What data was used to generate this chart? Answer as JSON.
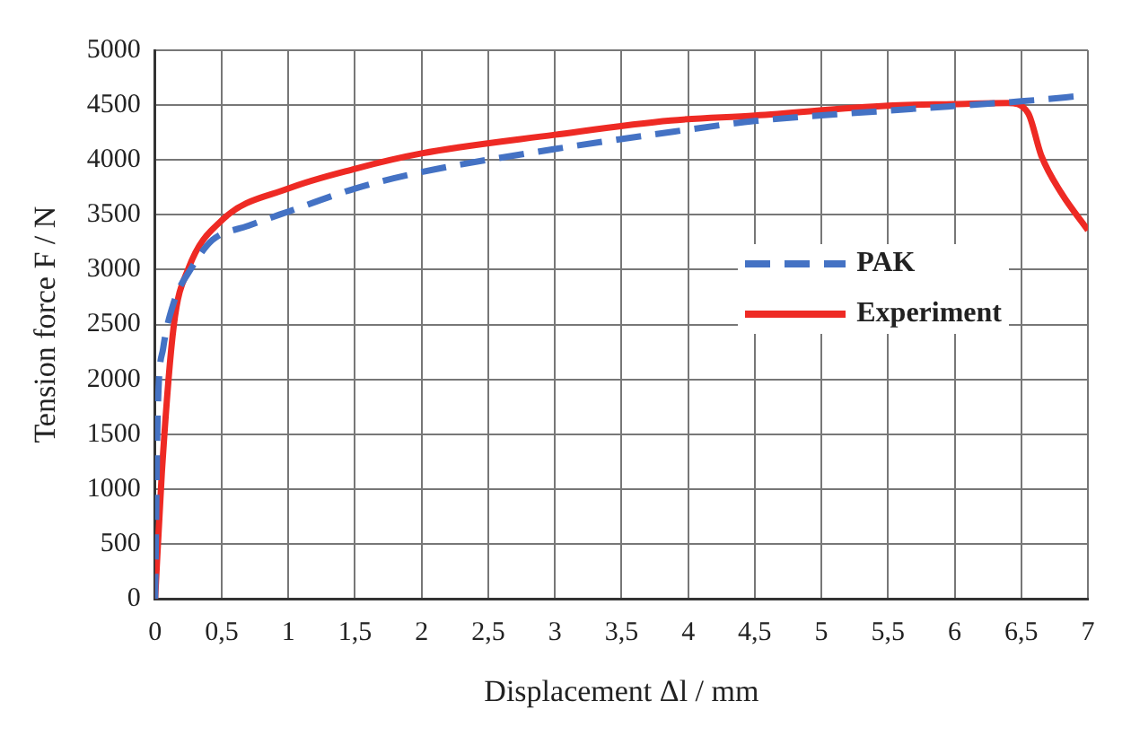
{
  "chart_data": {
    "type": "line",
    "xlabel": "Displacement Δl / mm",
    "ylabel": "Tension force F / N",
    "xlim": [
      0,
      7
    ],
    "xticks": [
      0,
      {
        "value": 0.5,
        "label": "0,5"
      },
      1,
      {
        "value": 1.5,
        "label": "1,5"
      },
      2,
      {
        "value": 2.5,
        "label": "2,5"
      },
      3,
      {
        "value": 3.5,
        "label": "3,5"
      },
      4,
      {
        "value": 4.5,
        "label": "4,5"
      },
      5,
      {
        "value": 5.5,
        "label": "5,5"
      },
      6,
      {
        "value": 6.5,
        "label": "6,5"
      },
      7
    ],
    "ylim": [
      0,
      5000
    ],
    "yticks": [
      0,
      500,
      1000,
      1500,
      2000,
      2500,
      3000,
      3500,
      4000,
      4500,
      5000
    ],
    "grid": true,
    "legend": "right",
    "marker": "none",
    "series": [
      {
        "name": "PAK",
        "color": "#4472c4",
        "line_style": "dashed",
        "x": [
          0,
          0.02,
          0.06,
          0.14,
          0.27,
          0.43,
          0.7,
          1.0,
          1.5,
          2.0,
          3.0,
          3.9,
          4.5,
          5.5,
          6.5,
          7
        ],
        "values": [
          0,
          1710,
          2280,
          2700,
          3010,
          3270,
          3400,
          3530,
          3740,
          3890,
          4100,
          4260,
          4355,
          4450,
          4535,
          4590
        ]
      },
      {
        "name": "Experiment",
        "color": "#ee2a24",
        "line_style": "solid",
        "x": [
          0,
          0.05,
          0.14,
          0.25,
          0.5,
          1.0,
          1.5,
          2.0,
          3.0,
          3.87,
          4.5,
          5.5,
          6.0,
          6.4,
          6.55,
          6.65,
          6.8,
          7
        ],
        "values": [
          0,
          1140,
          2490,
          3010,
          3450,
          3740,
          3920,
          4060,
          4230,
          4360,
          4405,
          4495,
          4510,
          4520,
          4430,
          4040,
          3700,
          3360
        ]
      }
    ]
  }
}
